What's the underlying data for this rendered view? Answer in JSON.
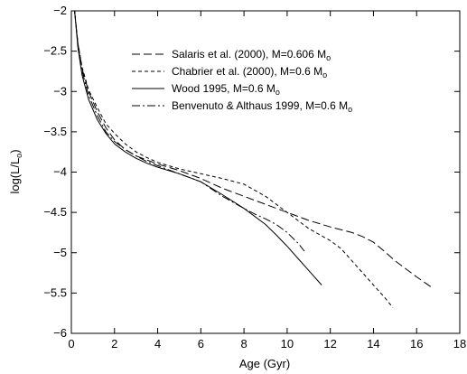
{
  "chart_data": {
    "type": "line",
    "title": "",
    "xlabel": "Age (Gyr)",
    "ylabel": "log(L/L",
    "ylabel_subscript": "o",
    "ylabel_suffix": ")",
    "xlim": [
      0,
      18
    ],
    "ylim": [
      -6,
      -2
    ],
    "xticks": [
      0,
      2,
      4,
      6,
      8,
      10,
      12,
      14,
      16,
      18
    ],
    "xtick_labels": [
      "0",
      "2",
      "4",
      "6",
      "8",
      "10",
      "12",
      "14",
      "16",
      "18"
    ],
    "yticks": [
      -6,
      -5.5,
      -5,
      -4.5,
      -4,
      -3.5,
      -3,
      -2.5,
      -2
    ],
    "ytick_labels": [
      "−6",
      "−5.5",
      "−5",
      "−4.5",
      "−4",
      "−3.5",
      "−3",
      "−2.5",
      "−2"
    ],
    "grid": false,
    "legend_position": "top-right",
    "series": [
      {
        "name": "Salaris et al. (2000), M=0.606 M",
        "name_subscript": "o",
        "style": "long-dash",
        "color": "#000000",
        "x": [
          0.15,
          0.3,
          0.5,
          0.8,
          1.2,
          1.6,
          2.0,
          2.5,
          3.0,
          3.5,
          4.0,
          5.0,
          6.0,
          7.0,
          8.0,
          9.0,
          10.0,
          11.0,
          12.0,
          13.0,
          13.5,
          14.0,
          14.5,
          15.0,
          15.5,
          16.0,
          16.7
        ],
        "y": [
          -2.0,
          -2.4,
          -2.72,
          -3.0,
          -3.25,
          -3.45,
          -3.6,
          -3.72,
          -3.8,
          -3.85,
          -3.9,
          -3.98,
          -4.08,
          -4.2,
          -4.3,
          -4.4,
          -4.5,
          -4.6,
          -4.68,
          -4.75,
          -4.8,
          -4.87,
          -4.98,
          -5.1,
          -5.2,
          -5.3,
          -5.43
        ]
      },
      {
        "name": "Chabrier et al. (2000), M=0.6 M",
        "name_subscript": "o",
        "style": "short-dash",
        "color": "#000000",
        "x": [
          0.15,
          0.3,
          0.5,
          0.8,
          1.2,
          1.6,
          2.0,
          2.5,
          3.0,
          3.5,
          4.0,
          5.0,
          6.0,
          7.0,
          8.0,
          9.0,
          10.0,
          11.0,
          12.0,
          12.5,
          13.0,
          13.5,
          14.0,
          14.5,
          14.9
        ],
        "y": [
          -2.0,
          -2.4,
          -2.7,
          -2.98,
          -3.2,
          -3.4,
          -3.52,
          -3.65,
          -3.75,
          -3.82,
          -3.88,
          -3.96,
          -4.02,
          -4.08,
          -4.15,
          -4.3,
          -4.5,
          -4.7,
          -4.85,
          -4.95,
          -5.1,
          -5.25,
          -5.4,
          -5.55,
          -5.68
        ]
      },
      {
        "name": "Wood 1995, M=0.6 M",
        "name_subscript": "o",
        "style": "solid",
        "color": "#000000",
        "x": [
          0.15,
          0.3,
          0.5,
          0.8,
          1.2,
          1.6,
          2.0,
          2.5,
          3.0,
          3.5,
          4.0,
          5.0,
          6.0,
          7.0,
          8.0,
          9.0,
          9.5,
          10.0,
          10.5,
          11.0,
          11.6
        ],
        "y": [
          -2.0,
          -2.45,
          -2.8,
          -3.1,
          -3.35,
          -3.52,
          -3.65,
          -3.75,
          -3.83,
          -3.89,
          -3.94,
          -4.02,
          -4.12,
          -4.28,
          -4.45,
          -4.65,
          -4.78,
          -4.92,
          -5.07,
          -5.22,
          -5.4
        ]
      },
      {
        "name": "Benvenuto & Althaus 1999, M=0.6 M",
        "name_subscript": "o",
        "style": "dash-dot",
        "color": "#000000",
        "x": [
          0.15,
          0.3,
          0.5,
          0.8,
          1.2,
          1.6,
          2.0,
          2.5,
          3.0,
          3.5,
          4.0,
          5.0,
          6.0,
          7.0,
          8.0,
          8.5,
          9.0,
          9.5,
          10.0,
          10.5,
          10.8
        ],
        "y": [
          -2.0,
          -2.42,
          -2.75,
          -3.05,
          -3.3,
          -3.5,
          -3.62,
          -3.72,
          -3.8,
          -3.87,
          -3.92,
          -4.02,
          -4.12,
          -4.3,
          -4.45,
          -4.52,
          -4.58,
          -4.65,
          -4.75,
          -4.88,
          -4.98
        ]
      }
    ]
  }
}
